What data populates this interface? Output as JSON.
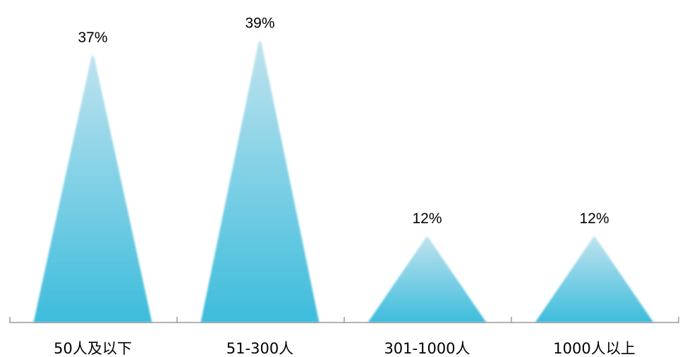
{
  "chart_data": {
    "type": "bar",
    "bar_shape": "triangle",
    "categories": [
      "50人及以下",
      "51-300人",
      "301-1000人",
      "1000人以上"
    ],
    "values": [
      37,
      39,
      12,
      12
    ],
    "data_labels": [
      "37%",
      "39%",
      "12%",
      "12%"
    ],
    "ylim": [
      0,
      40
    ],
    "grid": false,
    "legend": "none"
  },
  "colors": {
    "bar_top": "#bfe3ee",
    "bar_bottom": "#3dbcdc",
    "axis": "#9a9a9a",
    "text": "#000000"
  }
}
